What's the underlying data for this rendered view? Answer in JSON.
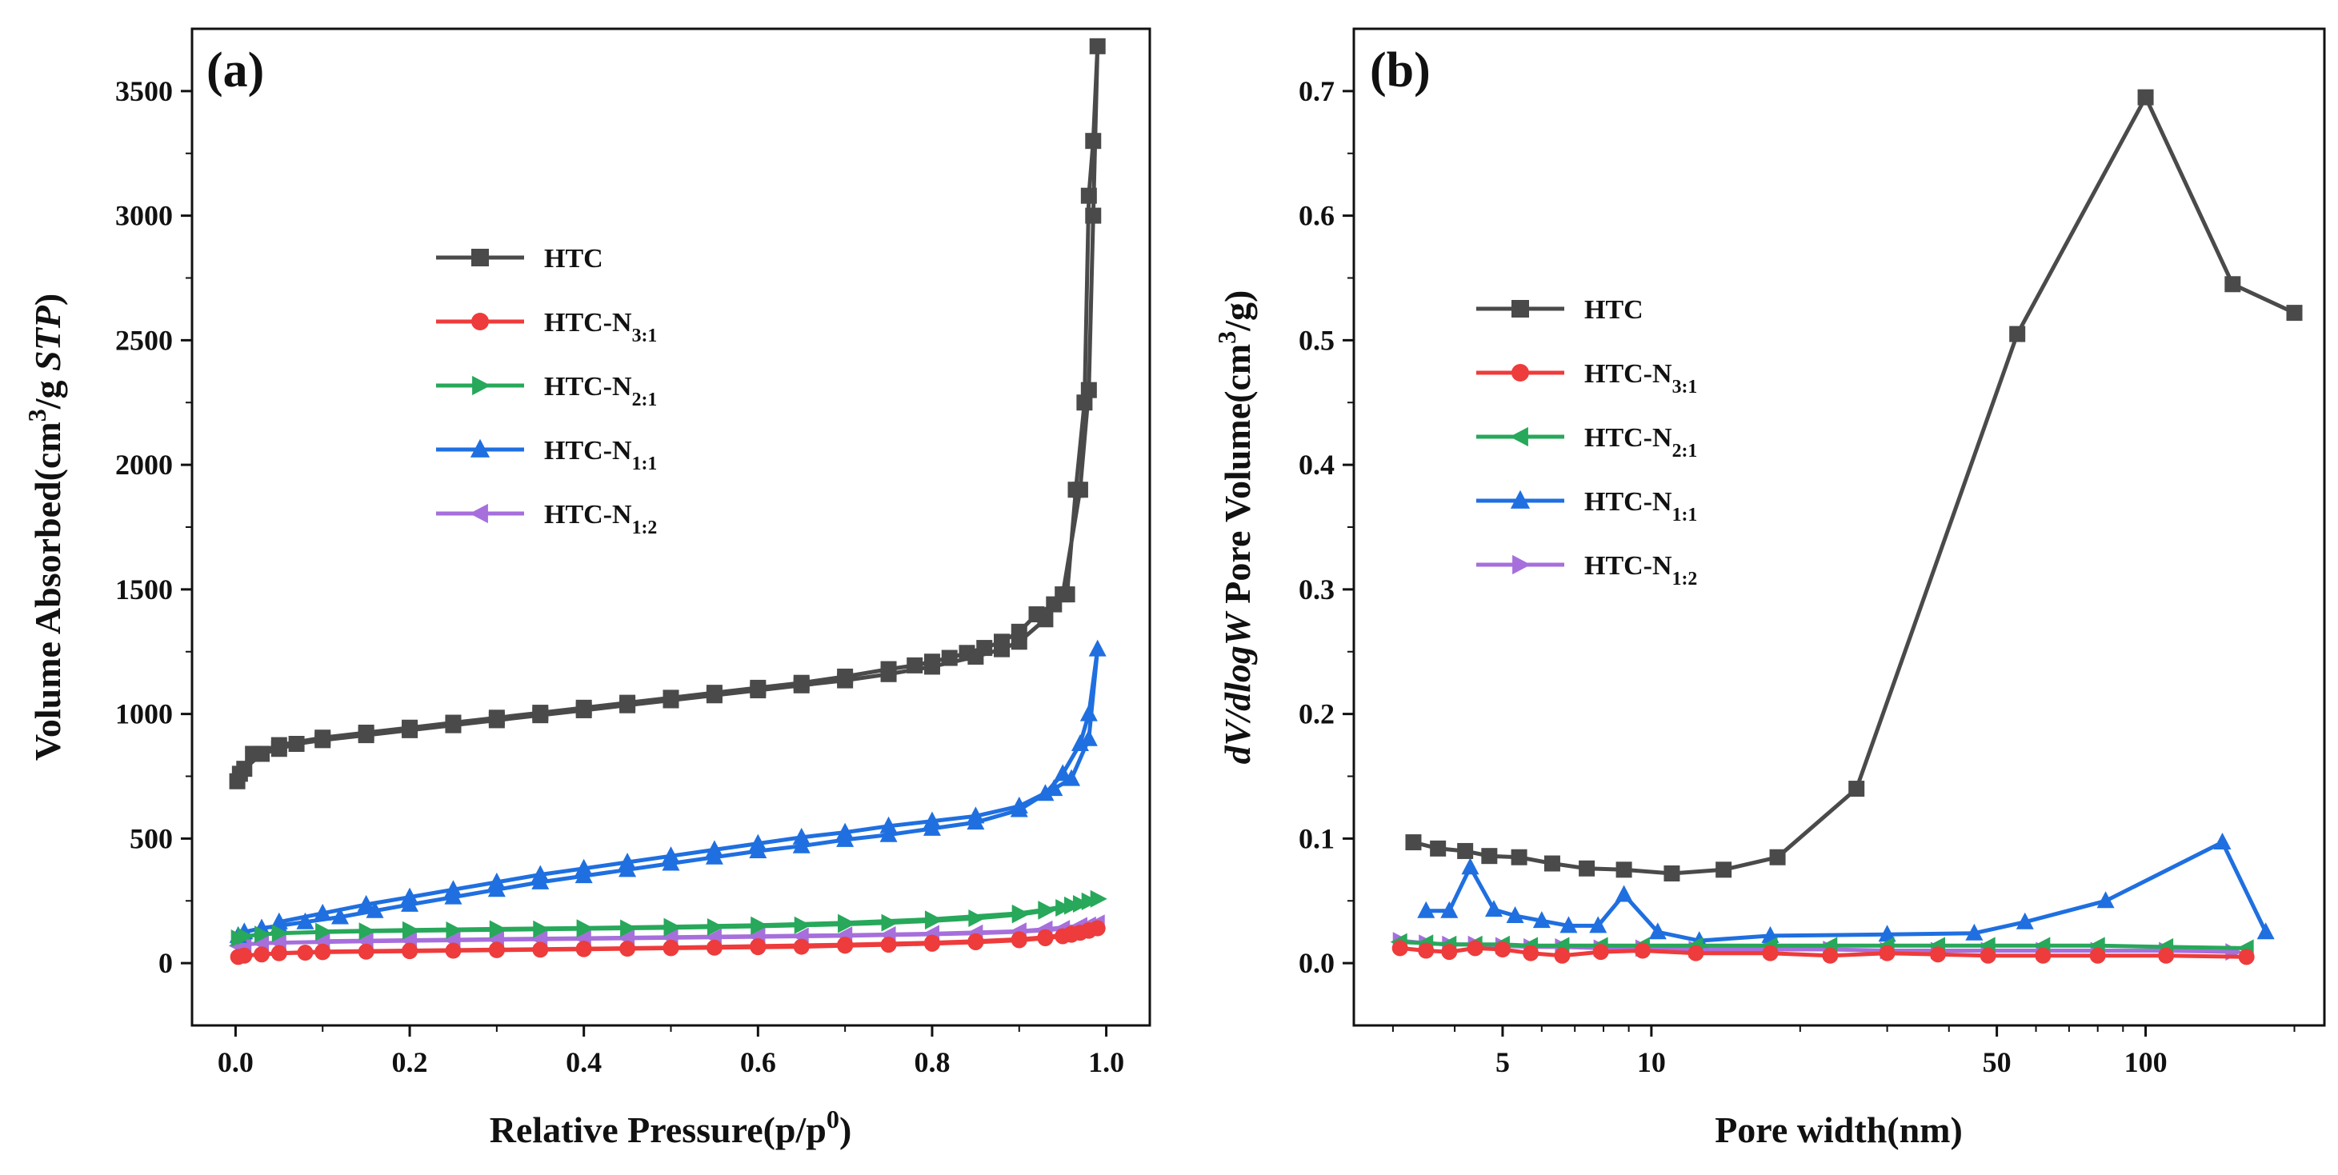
{
  "chart_data": [
    {
      "type": "line",
      "panel_label": "(a)",
      "xlabel": "Relative Pressure(p/p0)",
      "ylabel": "Volume Absorbed(cm3/g STP)",
      "xlim": [
        -0.05,
        1.05
      ],
      "ylim": [
        -250,
        3750
      ],
      "xticks": [
        0.0,
        0.2,
        0.4,
        0.6,
        0.8,
        1.0
      ],
      "xtick_labels": [
        "0.0",
        "0.2",
        "0.4",
        "0.6",
        "0.8",
        "1.0"
      ],
      "yticks": [
        0,
        500,
        1000,
        1500,
        2000,
        2500,
        3000,
        3500
      ],
      "ytick_labels": [
        "0",
        "500",
        "1000",
        "1500",
        "2000",
        "2500",
        "3000",
        "3500"
      ],
      "legend_position": "upper-left-center",
      "series": [
        {
          "name": "HTC",
          "sub": "",
          "color": "#4a4a4a",
          "marker": "square",
          "x": [
            0.002,
            0.005,
            0.01,
            0.03,
            0.05,
            0.07,
            0.1,
            0.15,
            0.2,
            0.25,
            0.3,
            0.35,
            0.4,
            0.45,
            0.5,
            0.55,
            0.6,
            0.65,
            0.7,
            0.75,
            0.8,
            0.85,
            0.88,
            0.9,
            0.93,
            0.95,
            0.97,
            0.98,
            0.985,
            0.99,
            0.985,
            0.98,
            0.975,
            0.965,
            0.955,
            0.94,
            0.92,
            0.9,
            0.88,
            0.86,
            0.84,
            0.82,
            0.8,
            0.78,
            0.75,
            0.7,
            0.65,
            0.6,
            0.55,
            0.5,
            0.45,
            0.4,
            0.35,
            0.3,
            0.25,
            0.2,
            0.15,
            0.1,
            0.05,
            0.02
          ],
          "y": [
            730,
            760,
            780,
            840,
            860,
            880,
            895,
            915,
            935,
            955,
            975,
            995,
            1015,
            1035,
            1055,
            1075,
            1095,
            1115,
            1135,
            1160,
            1190,
            1230,
            1260,
            1290,
            1380,
            1480,
            1900,
            2300,
            3000,
            3680,
            3300,
            3080,
            2250,
            1900,
            1480,
            1440,
            1400,
            1330,
            1290,
            1265,
            1245,
            1225,
            1210,
            1195,
            1180,
            1150,
            1125,
            1105,
            1085,
            1065,
            1045,
            1025,
            1005,
            985,
            965,
            945,
            925,
            905,
            875,
            840
          ]
        },
        {
          "name": "HTC-N",
          "sub": "3:1",
          "color": "#ee3b3b",
          "marker": "circle",
          "x": [
            0.003,
            0.01,
            0.03,
            0.05,
            0.08,
            0.1,
            0.15,
            0.2,
            0.25,
            0.3,
            0.35,
            0.4,
            0.45,
            0.5,
            0.55,
            0.6,
            0.65,
            0.7,
            0.75,
            0.8,
            0.85,
            0.9,
            0.93,
            0.95,
            0.96,
            0.97,
            0.98,
            0.99,
            0.98,
            0.96,
            0.93,
            0.9,
            0.85,
            0.8,
            0.7,
            0.6,
            0.5,
            0.4,
            0.3,
            0.2,
            0.1,
            0.05
          ],
          "y": [
            25,
            30,
            35,
            40,
            42,
            44,
            46,
            48,
            50,
            52,
            54,
            56,
            58,
            60,
            62,
            64,
            66,
            70,
            74,
            78,
            84,
            92,
            100,
            108,
            114,
            122,
            130,
            140,
            132,
            118,
            104,
            96,
            88,
            82,
            74,
            68,
            62,
            58,
            54,
            50,
            46,
            40
          ]
        },
        {
          "name": "HTC-N",
          "sub": "2:1",
          "color": "#27a85a",
          "marker": "tri-right",
          "x": [
            0.003,
            0.01,
            0.03,
            0.05,
            0.1,
            0.15,
            0.2,
            0.25,
            0.3,
            0.35,
            0.4,
            0.45,
            0.5,
            0.55,
            0.6,
            0.65,
            0.7,
            0.75,
            0.8,
            0.85,
            0.9,
            0.93,
            0.95,
            0.96,
            0.97,
            0.98,
            0.99,
            0.98,
            0.96,
            0.93,
            0.9,
            0.8,
            0.7,
            0.6,
            0.5,
            0.4,
            0.3,
            0.2,
            0.1
          ],
          "y": [
            100,
            108,
            115,
            120,
            125,
            128,
            130,
            132,
            134,
            136,
            138,
            140,
            142,
            145,
            148,
            152,
            156,
            162,
            170,
            180,
            195,
            210,
            222,
            230,
            238,
            248,
            258,
            248,
            232,
            215,
            200,
            176,
            162,
            152,
            146,
            141,
            137,
            133,
            127
          ]
        },
        {
          "name": "HTC-N",
          "sub": "1:1",
          "color": "#1f6fe0",
          "marker": "tri-up",
          "x": [
            0.003,
            0.01,
            0.03,
            0.05,
            0.08,
            0.12,
            0.16,
            0.2,
            0.25,
            0.3,
            0.35,
            0.4,
            0.45,
            0.5,
            0.55,
            0.6,
            0.65,
            0.7,
            0.75,
            0.8,
            0.85,
            0.9,
            0.93,
            0.95,
            0.97,
            0.98,
            0.99,
            0.98,
            0.96,
            0.94,
            0.9,
            0.85,
            0.8,
            0.75,
            0.7,
            0.65,
            0.6,
            0.55,
            0.5,
            0.45,
            0.4,
            0.35,
            0.3,
            0.25,
            0.2,
            0.15,
            0.1,
            0.05
          ],
          "y": [
            110,
            125,
            140,
            150,
            165,
            185,
            210,
            235,
            265,
            295,
            325,
            350,
            375,
            400,
            425,
            450,
            470,
            495,
            515,
            540,
            565,
            615,
            680,
            760,
            880,
            1000,
            1260,
            900,
            740,
            700,
            630,
            590,
            570,
            550,
            525,
            505,
            480,
            455,
            430,
            405,
            380,
            355,
            325,
            295,
            265,
            235,
            200,
            165
          ]
        },
        {
          "name": "HTC-N",
          "sub": "1:2",
          "color": "#a66fdc",
          "marker": "tri-left",
          "x": [
            0.003,
            0.01,
            0.03,
            0.05,
            0.1,
            0.15,
            0.2,
            0.25,
            0.3,
            0.35,
            0.4,
            0.45,
            0.5,
            0.55,
            0.6,
            0.65,
            0.7,
            0.75,
            0.8,
            0.85,
            0.9,
            0.93,
            0.95,
            0.97,
            0.98,
            0.99,
            0.97,
            0.93,
            0.9,
            0.8,
            0.7,
            0.6,
            0.5,
            0.4,
            0.3,
            0.2,
            0.1
          ],
          "y": [
            70,
            75,
            80,
            82,
            85,
            88,
            90,
            92,
            94,
            96,
            98,
            100,
            102,
            104,
            106,
            108,
            110,
            113,
            116,
            120,
            126,
            132,
            138,
            146,
            152,
            160,
            150,
            136,
            128,
            118,
            112,
            108,
            104,
            100,
            96,
            92,
            88
          ]
        }
      ]
    },
    {
      "type": "line",
      "panel_label": "(b)",
      "xlabel": "Pore width(nm)",
      "ylabel": "dV/dlogW Pore Volume(cm3/g)",
      "xscale": "log",
      "xlim": [
        2.5,
        230
      ],
      "ylim": [
        -0.05,
        0.75
      ],
      "xticks": [
        5,
        10,
        50,
        100
      ],
      "xtick_labels": [
        "5",
        "10",
        "50",
        "100"
      ],
      "yticks": [
        0.0,
        0.1,
        0.2,
        0.3,
        0.4,
        0.5,
        0.6,
        0.7
      ],
      "ytick_labels": [
        "0.0",
        "0.1",
        "0.2",
        "0.3",
        "0.4",
        "0.5",
        "0.6",
        "0.7"
      ],
      "legend_position": "upper-left-center",
      "series": [
        {
          "name": "HTC",
          "sub": "",
          "color": "#4a4a4a",
          "marker": "square",
          "x": [
            3.3,
            3.7,
            4.2,
            4.7,
            5.4,
            6.3,
            7.4,
            8.8,
            11.0,
            14.0,
            18.0,
            26.0,
            55.0,
            100.0,
            150.0,
            200.0
          ],
          "y": [
            0.097,
            0.092,
            0.09,
            0.086,
            0.085,
            0.08,
            0.076,
            0.075,
            0.072,
            0.075,
            0.085,
            0.14,
            0.505,
            0.695,
            0.545,
            0.522
          ]
        },
        {
          "name": "HTC-N",
          "sub": "3:1",
          "color": "#ee3b3b",
          "marker": "circle",
          "x": [
            3.1,
            3.5,
            3.9,
            4.4,
            5.0,
            5.7,
            6.6,
            7.9,
            9.6,
            12.3,
            17.4,
            23.0,
            30.0,
            38.0,
            48.0,
            62.0,
            80.0,
            110.0,
            160.0
          ],
          "y": [
            0.012,
            0.01,
            0.009,
            0.012,
            0.011,
            0.008,
            0.006,
            0.009,
            0.01,
            0.008,
            0.008,
            0.006,
            0.008,
            0.007,
            0.006,
            0.006,
            0.006,
            0.006,
            0.005
          ]
        },
        {
          "name": "HTC-N",
          "sub": "2:1",
          "color": "#27a85a",
          "marker": "tri-left",
          "x": [
            3.1,
            3.5,
            3.9,
            4.4,
            5.0,
            5.7,
            6.6,
            7.9,
            9.6,
            12.3,
            17.4,
            23.0,
            30.0,
            38.0,
            48.0,
            62.0,
            80.0,
            110.0,
            160.0
          ],
          "y": [
            0.017,
            0.016,
            0.015,
            0.015,
            0.015,
            0.014,
            0.014,
            0.014,
            0.014,
            0.014,
            0.014,
            0.014,
            0.014,
            0.014,
            0.014,
            0.014,
            0.014,
            0.013,
            0.012
          ]
        },
        {
          "name": "HTC-N",
          "sub": "1:1",
          "color": "#1f6fe0",
          "marker": "tri-up",
          "x": [
            3.5,
            3.9,
            4.3,
            4.8,
            5.3,
            6.0,
            6.8,
            7.8,
            8.8,
            10.3,
            12.5,
            17.4,
            30.0,
            45.0,
            57.0,
            83.0,
            143.0,
            175.0
          ],
          "y": [
            0.042,
            0.042,
            0.077,
            0.043,
            0.038,
            0.034,
            0.03,
            0.03,
            0.055,
            0.025,
            0.018,
            0.022,
            0.023,
            0.024,
            0.033,
            0.05,
            0.097,
            0.025
          ]
        },
        {
          "name": "HTC-N",
          "sub": "1:2",
          "color": "#a66fdc",
          "marker": "tri-right",
          "x": [
            3.1,
            3.5,
            3.9,
            4.4,
            5.0,
            5.7,
            6.6,
            7.9,
            9.6,
            12.3,
            17.4,
            23.0,
            30.0,
            38.0,
            48.0,
            62.0,
            80.0,
            110.0,
            150.0
          ],
          "y": [
            0.018,
            0.016,
            0.015,
            0.015,
            0.014,
            0.013,
            0.013,
            0.012,
            0.012,
            0.011,
            0.011,
            0.011,
            0.01,
            0.01,
            0.01,
            0.01,
            0.01,
            0.01,
            0.009
          ]
        }
      ]
    }
  ]
}
